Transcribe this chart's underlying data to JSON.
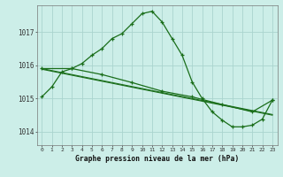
{
  "title": "Graphe pression niveau de la mer (hPa)",
  "background_color": "#cceee8",
  "grid_color": "#aad4ce",
  "line_color": "#1a6e1a",
  "x_labels": [
    "0",
    "1",
    "2",
    "3",
    "4",
    "5",
    "6",
    "7",
    "8",
    "9",
    "10",
    "11",
    "12",
    "13",
    "14",
    "15",
    "16",
    "17",
    "18",
    "19",
    "20",
    "21",
    "22",
    "23"
  ],
  "ylim": [
    1013.6,
    1017.8
  ],
  "yticks": [
    1014,
    1015,
    1016,
    1017
  ],
  "series1_x": [
    0,
    1,
    2,
    3,
    4,
    5,
    6,
    7,
    8,
    9,
    10,
    11,
    12,
    13,
    14,
    15,
    16,
    17,
    18,
    19,
    20,
    21,
    22,
    23
  ],
  "series1_y": [
    1015.05,
    1015.35,
    1015.8,
    1015.9,
    1016.05,
    1016.3,
    1016.5,
    1016.8,
    1016.95,
    1017.25,
    1017.55,
    1017.62,
    1017.3,
    1016.8,
    1016.3,
    1015.5,
    1015.0,
    1014.6,
    1014.35,
    1014.15,
    1014.15,
    1014.2,
    1014.38,
    1014.95
  ],
  "series2_x": [
    0,
    1,
    2,
    3,
    4,
    5,
    6,
    7,
    8,
    9,
    10,
    11,
    12,
    13,
    14,
    15,
    16,
    17,
    18,
    19,
    20,
    21,
    22,
    23
  ],
  "series2_y": [
    1015.88,
    1015.82,
    1015.76,
    1015.7,
    1015.64,
    1015.58,
    1015.52,
    1015.46,
    1015.4,
    1015.34,
    1015.28,
    1015.22,
    1015.16,
    1015.1,
    1015.04,
    1014.98,
    1014.92,
    1014.86,
    1014.8,
    1014.74,
    1014.68,
    1014.62,
    1014.56,
    1014.5
  ],
  "series3_x": [
    0,
    1,
    2,
    3,
    4,
    5,
    6,
    7,
    8,
    9,
    10,
    11,
    12,
    13,
    14,
    15,
    16,
    17,
    18,
    19,
    20,
    21,
    22,
    23
  ],
  "series3_y": [
    1015.9,
    1015.84,
    1015.78,
    1015.72,
    1015.66,
    1015.6,
    1015.54,
    1015.48,
    1015.42,
    1015.36,
    1015.3,
    1015.24,
    1015.18,
    1015.12,
    1015.06,
    1015.0,
    1014.94,
    1014.88,
    1014.82,
    1014.76,
    1014.7,
    1014.64,
    1014.58,
    1014.52
  ],
  "series4_x": [
    0,
    3,
    6,
    9,
    12,
    15,
    18,
    21,
    23
  ],
  "series4_y": [
    1015.9,
    1015.9,
    1015.72,
    1015.48,
    1015.22,
    1015.05,
    1014.82,
    1014.6,
    1014.95
  ]
}
